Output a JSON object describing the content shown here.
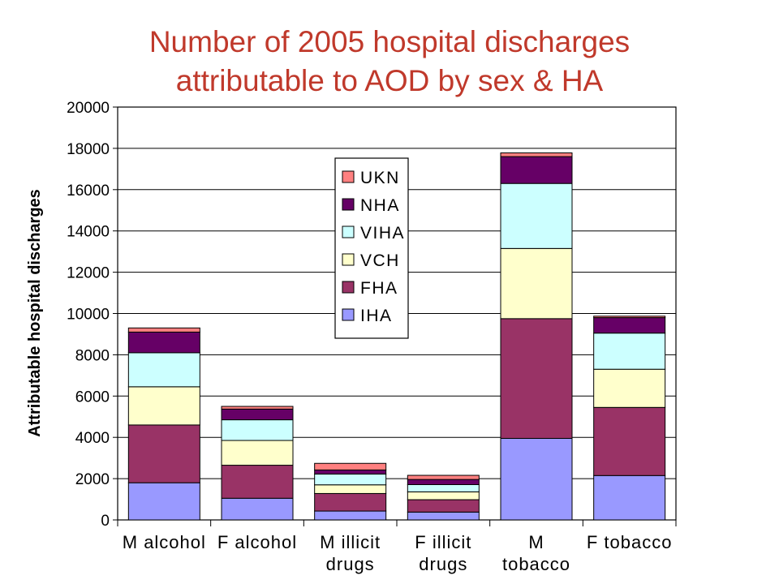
{
  "chart_data": {
    "type": "bar",
    "stacked": true,
    "title": "Number of 2005 hospital discharges attributable to AOD by sex & HA",
    "title_lines": [
      "Number of 2005 hospital discharges",
      "attributable to AOD by sex & HA"
    ],
    "xlabel": "",
    "ylabel": "Attributable hospital discharges",
    "ylim": [
      0,
      20000
    ],
    "yticks": [
      0,
      2000,
      4000,
      6000,
      8000,
      10000,
      12000,
      14000,
      16000,
      18000,
      20000
    ],
    "ytick_labels": [
      "0",
      "2000",
      "4000",
      "6000",
      "8000",
      "10000",
      "12000",
      "14000",
      "16000",
      "18000",
      "20000"
    ],
    "grid": true,
    "legend_position": "center",
    "categories": [
      "M alcohol",
      "F alcohol",
      "M illicit drugs",
      "F illicit drugs",
      "M tobacco",
      "F tobacco"
    ],
    "category_lines": [
      [
        "M alcohol"
      ],
      [
        "F alcohol"
      ],
      [
        "M illicit",
        "drugs"
      ],
      [
        "F illicit",
        "drugs"
      ],
      [
        "M",
        "tobacco"
      ],
      [
        "F tobacco"
      ]
    ],
    "series": [
      {
        "name": "IHA",
        "color": "#9999ff",
        "values": [
          1800,
          1050,
          430,
          380,
          3950,
          2150
        ]
      },
      {
        "name": "FHA",
        "color": "#993366",
        "values": [
          2800,
          1600,
          850,
          600,
          5800,
          3300
        ]
      },
      {
        "name": "VCH",
        "color": "#ffffcc",
        "values": [
          1850,
          1200,
          420,
          380,
          3400,
          1850
        ]
      },
      {
        "name": "VIHA",
        "color": "#ccffff",
        "values": [
          1650,
          1000,
          520,
          350,
          3150,
          1750
        ]
      },
      {
        "name": "NHA",
        "color": "#660066",
        "values": [
          1000,
          520,
          200,
          250,
          1300,
          750
        ]
      },
      {
        "name": "UKN",
        "color": "#ff8080",
        "values": [
          200,
          130,
          320,
          200,
          180,
          70
        ]
      }
    ],
    "legend_order": [
      "UKN",
      "NHA",
      "VIHA",
      "VCH",
      "FHA",
      "IHA"
    ]
  }
}
